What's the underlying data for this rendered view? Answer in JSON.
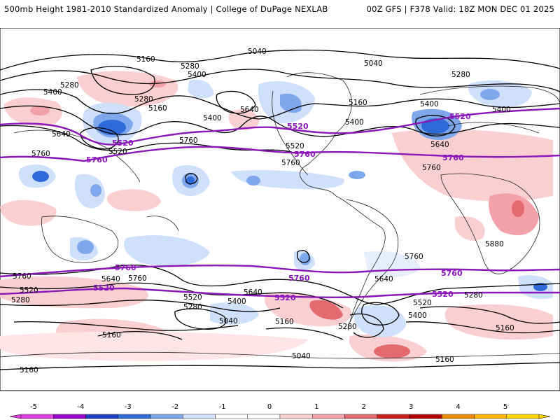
{
  "header": {
    "left_title": "500mb Height 1981-2010 Standardized Anomaly | College of DuPage NEXLAB",
    "right_title": "00Z GFS | F378 Valid: 18Z MON DEC 01 2025"
  },
  "map": {
    "contour_labels": [
      {
        "text": "5040",
        "role": "height"
      },
      {
        "text": "5040",
        "role": "height"
      },
      {
        "text": "5160",
        "role": "height"
      },
      {
        "text": "5280",
        "role": "height"
      },
      {
        "text": "5400",
        "role": "height"
      },
      {
        "text": "5280",
        "role": "height"
      },
      {
        "text": "5400",
        "role": "height"
      },
      {
        "text": "5280",
        "role": "height"
      },
      {
        "text": "5160",
        "role": "height"
      },
      {
        "text": "5640",
        "role": "height"
      },
      {
        "text": "5400",
        "role": "height"
      },
      {
        "text": "5160",
        "role": "height"
      },
      {
        "text": "5400",
        "role": "height"
      },
      {
        "text": "5280",
        "role": "height"
      },
      {
        "text": "5400",
        "role": "height"
      },
      {
        "text": "5400",
        "role": "height"
      },
      {
        "text": "5640",
        "role": "height"
      },
      {
        "text": "5520",
        "role": "height"
      },
      {
        "text": "5760",
        "role": "height"
      },
      {
        "text": "5760",
        "role": "height"
      },
      {
        "text": "5760",
        "role": "height"
      },
      {
        "text": "5640",
        "role": "height"
      },
      {
        "text": "5880",
        "role": "height"
      },
      {
        "text": "5760",
        "role": "height"
      },
      {
        "text": "5760",
        "role": "height"
      },
      {
        "text": "5760",
        "role": "height"
      },
      {
        "text": "5640",
        "role": "height"
      },
      {
        "text": "5760",
        "role": "height"
      },
      {
        "text": "5520",
        "role": "height"
      },
      {
        "text": "5280",
        "role": "height"
      },
      {
        "text": "5640",
        "role": "height"
      },
      {
        "text": "5520",
        "role": "height"
      },
      {
        "text": "5280",
        "role": "height"
      },
      {
        "text": "5400",
        "role": "height"
      },
      {
        "text": "5640",
        "role": "height"
      },
      {
        "text": "5520",
        "role": "height"
      },
      {
        "text": "5400",
        "role": "height"
      },
      {
        "text": "5280",
        "role": "height"
      },
      {
        "text": "5040",
        "role": "height"
      },
      {
        "text": "5160",
        "role": "height"
      },
      {
        "text": "5280",
        "role": "height"
      },
      {
        "text": "5160",
        "role": "height"
      },
      {
        "text": "5040",
        "role": "height"
      },
      {
        "text": "5160",
        "role": "height"
      },
      {
        "text": "5160",
        "role": "height"
      },
      {
        "text": "5160",
        "role": "height"
      },
      {
        "text": "5520",
        "role": "highlight"
      },
      {
        "text": "5520",
        "role": "highlight"
      },
      {
        "text": "5520",
        "role": "highlight"
      },
      {
        "text": "5520",
        "role": "highlight"
      },
      {
        "text": "5760",
        "role": "highlight"
      },
      {
        "text": "5760",
        "role": "highlight"
      },
      {
        "text": "5760",
        "role": "highlight"
      },
      {
        "text": "5760",
        "role": "highlight"
      },
      {
        "text": "5760",
        "role": "highlight"
      },
      {
        "text": "5760",
        "role": "highlight"
      },
      {
        "text": "5520",
        "role": "highlight"
      },
      {
        "text": "5520",
        "role": "highlight"
      },
      {
        "text": "5520",
        "role": "highlight"
      }
    ]
  },
  "colorbar": {
    "ticks": [
      "-5",
      "-4",
      "-3",
      "-2",
      "-1",
      "0",
      "1",
      "2",
      "3",
      "4",
      "5"
    ],
    "colors": [
      "#e040e0",
      "#9b00c8",
      "#1c3fbf",
      "#2f6bd8",
      "#7fa8ec",
      "#cfe0fa",
      "#ffffff",
      "#ffffff",
      "#f9cfd2",
      "#f2a1a8",
      "#e46a70",
      "#c81e1e",
      "#b00000",
      "#f08c00",
      "#ffb400",
      "#ffd400"
    ]
  },
  "colors": {
    "height_contour": "#000000",
    "highlight_contour": "#8b18b8",
    "neg_anom_light": "#cfe0fa",
    "neg_anom_mid": "#7fa8ec",
    "neg_anom_strong": "#2f6bd8",
    "pos_anom_light": "#f9cfd2",
    "pos_anom_mid": "#f2a1a8",
    "pos_anom_strong": "#e46a70"
  }
}
